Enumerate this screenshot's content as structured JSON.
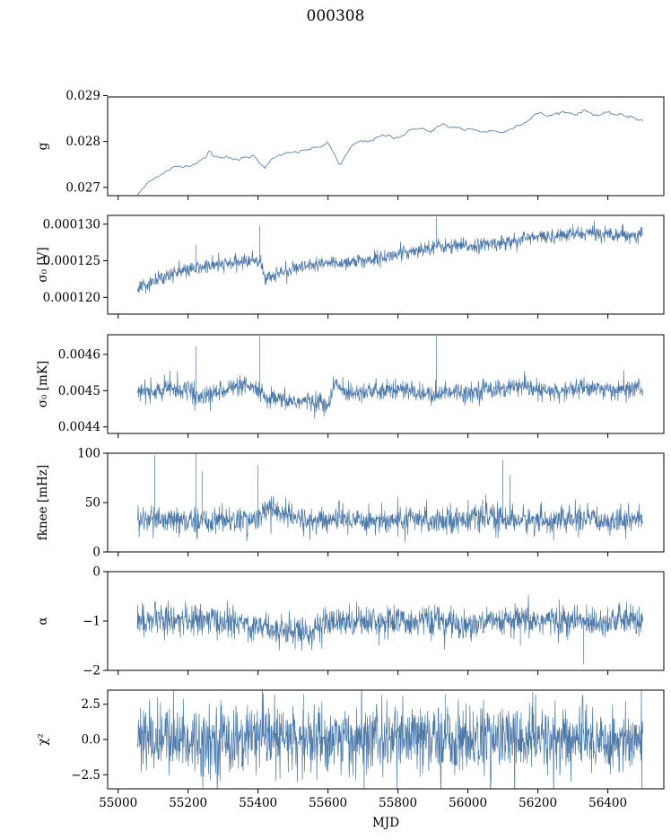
{
  "figure": {
    "suptitle": "000308",
    "xlabel": "MJD",
    "series_color": "#4c78a8"
  },
  "chart_data": [
    {
      "type": "line",
      "ylabel": "g",
      "xlim": [
        54970,
        56560
      ],
      "ylim": [
        0.02682,
        0.02897
      ],
      "yticks": [
        0.027,
        0.028,
        0.029
      ],
      "ytick_labels": [
        "0.027",
        "0.028",
        "0.029"
      ],
      "xticks": [
        55000,
        55200,
        55400,
        55600,
        55800,
        56000,
        56200,
        56400
      ],
      "show_xticklabels": false,
      "series": [
        {
          "x": [
            55055,
            55075,
            55090,
            55110,
            55130,
            55150,
            55170,
            55190,
            55210,
            55230,
            55250,
            55260,
            55270,
            55290,
            55310,
            55330,
            55350,
            55370,
            55390,
            55410,
            55420,
            55440,
            55460,
            55480,
            55500,
            55520,
            55540,
            55560,
            55580,
            55600,
            55620,
            55635,
            55650,
            55670,
            55690,
            55710,
            55730,
            55750,
            55770,
            55790,
            55810,
            55830,
            55850,
            55870,
            55890,
            55910,
            55930,
            55950,
            55970,
            55990,
            56010,
            56030,
            56050,
            56070,
            56090,
            56110,
            56130,
            56150,
            56170,
            56190,
            56210,
            56230,
            56250,
            56270,
            56290,
            56310,
            56330,
            56350,
            56370,
            56390,
            56410,
            56430,
            56450,
            56470,
            56490,
            56500
          ],
          "y": [
            0.02683,
            0.027,
            0.02715,
            0.02725,
            0.0273,
            0.0274,
            0.02745,
            0.02748,
            0.0275,
            0.02755,
            0.02765,
            0.0278,
            0.0277,
            0.02765,
            0.0277,
            0.02758,
            0.02762,
            0.02765,
            0.0277,
            0.0275,
            0.02745,
            0.0276,
            0.0277,
            0.02772,
            0.02775,
            0.02778,
            0.02782,
            0.02785,
            0.0279,
            0.02795,
            0.0277,
            0.02748,
            0.02768,
            0.0279,
            0.028,
            0.028,
            0.02805,
            0.0281,
            0.02813,
            0.0281,
            0.02812,
            0.0282,
            0.0283,
            0.02828,
            0.0282,
            0.0283,
            0.02835,
            0.0283,
            0.02832,
            0.02825,
            0.02825,
            0.02825,
            0.0282,
            0.02825,
            0.0282,
            0.02822,
            0.0283,
            0.0284,
            0.02845,
            0.0286,
            0.0286,
            0.02855,
            0.0286,
            0.02865,
            0.02862,
            0.0286,
            0.02868,
            0.02862,
            0.02858,
            0.0286,
            0.0286,
            0.02858,
            0.02855,
            0.02855,
            0.02848,
            0.02845
          ],
          "noise": 4e-05,
          "fill": false
        }
      ]
    },
    {
      "type": "line",
      "ylabel": "σ₀ [V]",
      "xlim": [
        54970,
        56560
      ],
      "ylim": [
        0.0001177,
        0.0001312
      ],
      "yticks": [
        0.00012,
        0.000125,
        0.00013
      ],
      "ytick_labels": [
        "0.000120",
        "0.000125",
        "0.000130"
      ],
      "xticks": [
        55000,
        55200,
        55400,
        55600,
        55800,
        56000,
        56200,
        56400
      ],
      "show_xticklabels": false,
      "series": [
        {
          "x": [
            55055,
            55100,
            55150,
            55200,
            55250,
            55300,
            55350,
            55395,
            55410,
            55420,
            55450,
            55500,
            55550,
            55600,
            55650,
            55700,
            55750,
            55800,
            55850,
            55890,
            55900,
            55950,
            56000,
            56050,
            56100,
            56130,
            56150,
            56200,
            56250,
            56300,
            56350,
            56400,
            56450,
            56500
          ],
          "y": [
            0.000121,
            0.0001222,
            0.0001232,
            0.0001237,
            0.0001242,
            0.0001245,
            0.0001248,
            0.0001252,
            0.0001246,
            0.0001224,
            0.0001232,
            0.0001238,
            0.0001242,
            0.0001246,
            0.0001248,
            0.000125,
            0.0001254,
            0.0001258,
            0.0001265,
            0.0001268,
            0.000127,
            0.0001269,
            0.000127,
            0.0001272,
            0.0001275,
            0.0001276,
            0.000128,
            0.0001282,
            0.0001284,
            0.0001286,
            0.0001288,
            0.0001287,
            0.0001286,
            0.0001285
          ],
          "noise": 4.5e-07,
          "fill": true,
          "spikes": [
            [
              55222,
              0.0001272
            ],
            [
              55405,
              0.0001298
            ],
            [
              55910,
              0.000131
            ],
            [
              56300,
              0.00013
            ]
          ]
        }
      ]
    },
    {
      "type": "line",
      "ylabel": "σ₀ [mK]",
      "xlim": [
        54970,
        56560
      ],
      "ylim": [
        0.004382,
        0.004654
      ],
      "yticks": [
        0.0044,
        0.0045,
        0.0046
      ],
      "ytick_labels": [
        "0.0044",
        "0.0045",
        "0.0046"
      ],
      "xticks": [
        55000,
        55200,
        55400,
        55600,
        55800,
        56000,
        56200,
        56400
      ],
      "show_xticklabels": false,
      "series": [
        {
          "x": [
            55055,
            55100,
            55150,
            55200,
            55230,
            55260,
            55300,
            55350,
            55400,
            55420,
            55450,
            55500,
            55550,
            55580,
            55600,
            55620,
            55650,
            55700,
            55750,
            55800,
            55850,
            55900,
            55950,
            56000,
            56050,
            56100,
            56150,
            56200,
            56250,
            56300,
            56350,
            56400,
            56450,
            56500
          ],
          "y": [
            0.0045,
            0.004495,
            0.004505,
            0.004505,
            0.00448,
            0.004485,
            0.004505,
            0.00451,
            0.004505,
            0.004475,
            0.004475,
            0.00447,
            0.00447,
            0.00447,
            0.004455,
            0.00452,
            0.004495,
            0.0045,
            0.004495,
            0.004505,
            0.004495,
            0.004485,
            0.0045,
            0.004495,
            0.004505,
            0.004505,
            0.00451,
            0.0045,
            0.004495,
            0.004505,
            0.00451,
            0.0045,
            0.004505,
            0.004505
          ],
          "noise": 1.2e-05,
          "fill": true,
          "spikes": [
            [
              55222,
              0.004622
            ],
            [
              55405,
              0.00465
            ],
            [
              55910,
              0.00465
            ]
          ]
        }
      ]
    },
    {
      "type": "line",
      "ylabel": "fknee [mHz]",
      "xlim": [
        54970,
        56560
      ],
      "ylim": [
        0,
        100
      ],
      "yticks": [
        0,
        50,
        100
      ],
      "ytick_labels": [
        "0",
        "50",
        "100"
      ],
      "xticks": [
        55000,
        55200,
        55400,
        55600,
        55800,
        56000,
        56200,
        56400
      ],
      "show_xticklabels": false,
      "series": [
        {
          "x": [
            55055,
            55100,
            55150,
            55200,
            55250,
            55300,
            55350,
            55400,
            55430,
            55470,
            55500,
            55550,
            55600,
            55650,
            55700,
            55750,
            55800,
            55850,
            55900,
            55950,
            56000,
            56050,
            56100,
            56150,
            56200,
            56250,
            56300,
            56350,
            56400,
            56450,
            56500
          ],
          "y": [
            33,
            32,
            31,
            31,
            31,
            33,
            32,
            33,
            45,
            40,
            34,
            31,
            32,
            33,
            33,
            32,
            32,
            32,
            33,
            33,
            34,
            35,
            34,
            32,
            32,
            32,
            33,
            32,
            32,
            33,
            33
          ],
          "noise": 6,
          "fill": true,
          "spikes": [
            [
              55105,
              98
            ],
            [
              55222,
              100
            ],
            [
              55240,
              82
            ],
            [
              55400,
              88
            ],
            [
              56100,
              93
            ],
            [
              56120,
              78
            ]
          ]
        }
      ]
    },
    {
      "type": "line",
      "ylabel": "α",
      "xlim": [
        54970,
        56560
      ],
      "ylim": [
        -2,
        0
      ],
      "yticks": [
        -2,
        -1,
        0
      ],
      "ytick_labels": [
        "−2",
        "−1",
        "0"
      ],
      "xticks": [
        55000,
        55200,
        55400,
        55600,
        55800,
        56000,
        56200,
        56400
      ],
      "show_xticklabels": false,
      "series": [
        {
          "x": [
            55055,
            55100,
            55150,
            55200,
            55250,
            55300,
            55350,
            55400,
            55450,
            55500,
            55550,
            55600,
            55650,
            55700,
            55750,
            55800,
            55850,
            55900,
            55950,
            56000,
            56050,
            56100,
            56150,
            56200,
            56250,
            56300,
            56350,
            56400,
            56450,
            56500
          ],
          "y": [
            -1.0,
            -0.98,
            -0.96,
            -1.0,
            -0.98,
            -1.02,
            -1.05,
            -1.1,
            -1.15,
            -1.2,
            -1.22,
            -1.05,
            -1.0,
            -0.98,
            -1.0,
            -1.02,
            -1.0,
            -1.0,
            -1.05,
            -1.08,
            -1.05,
            -1.02,
            -1.0,
            -1.0,
            -0.98,
            -1.0,
            -1.02,
            -1.0,
            -0.98,
            -1.0
          ],
          "noise": 0.14,
          "fill": true,
          "spikes": [
            [
              56330,
              -1.88
            ],
            [
              56150,
              -1.5
            ]
          ]
        }
      ]
    },
    {
      "type": "line",
      "ylabel": "χ²",
      "xlim": [
        54970,
        56560
      ],
      "ylim": [
        -3.5,
        3.5
      ],
      "yticks": [
        -2.5,
        0.0,
        2.5
      ],
      "ytick_labels": [
        "−2.5",
        "0.0",
        "2.5"
      ],
      "xticks": [
        55000,
        55200,
        55400,
        55600,
        55800,
        56000,
        56200,
        56400
      ],
      "xtick_labels": [
        "55000",
        "55200",
        "55400",
        "55600",
        "55800",
        "56000",
        "56200",
        "56400"
      ],
      "show_xticklabels": true,
      "series": [
        {
          "x": [
            55055,
            56500
          ],
          "y": [
            0.0,
            0.0
          ],
          "noise": 1.1,
          "fill": true,
          "spikes": [
            [
              55530,
              3.2
            ],
            [
              55935,
              3.2
            ]
          ]
        }
      ]
    }
  ]
}
